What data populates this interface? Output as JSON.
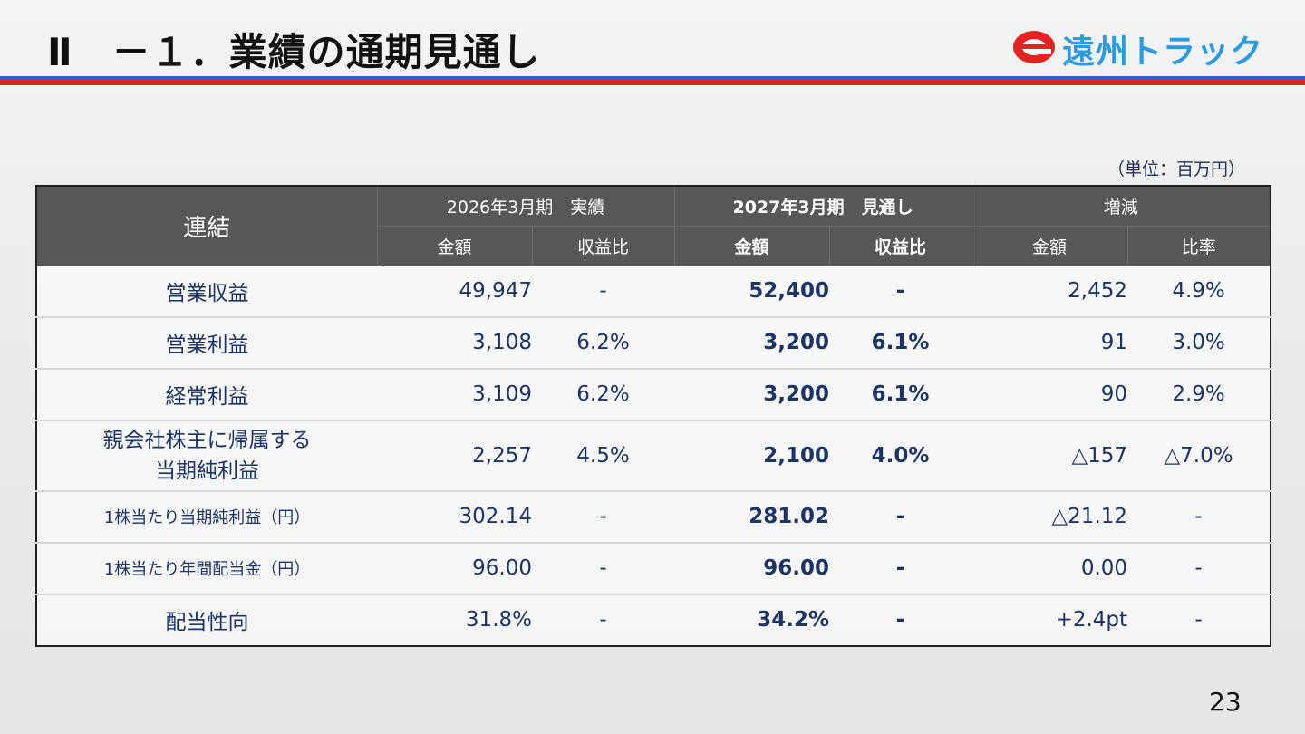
{
  "title": "Ⅱ　－１．業績の通期見通し",
  "logo": {
    "text": "遠州トラック",
    "accent_color": "#e32222",
    "text_color": "#2a9be0"
  },
  "unit": "（単位：百万円）",
  "table": {
    "corner": "連結",
    "groups": [
      "2026年3月期　実績",
      "2027年3月期　見通し",
      "増減"
    ],
    "subheaders": [
      "金額",
      "収益比",
      "金額",
      "収益比",
      "金額",
      "比率"
    ],
    "rows": [
      {
        "label": "営業収益",
        "cells": [
          "49,947",
          "-",
          "52,400",
          "-",
          "2,452",
          "4.9%"
        ]
      },
      {
        "label": "営業利益",
        "cells": [
          "3,108",
          "6.2%",
          "3,200",
          "6.1%",
          "91",
          "3.0%"
        ]
      },
      {
        "label": "経常利益",
        "cells": [
          "3,109",
          "6.2%",
          "3,200",
          "6.1%",
          "90",
          "2.9%"
        ]
      },
      {
        "label": "親会社株主に帰属する",
        "label2": "当期純利益",
        "cells": [
          "2,257",
          "4.5%",
          "2,100",
          "4.0%",
          "△157",
          "△7.0%"
        ]
      },
      {
        "label": "1株当たり当期純利益（円）",
        "cells": [
          "302.14",
          "-",
          "281.02",
          "-",
          "△21.12",
          "-"
        ]
      },
      {
        "label": "1株当たり年間配当金（円）",
        "cells": [
          "96.00",
          "-",
          "96.00",
          "-",
          "0.00",
          "-"
        ]
      },
      {
        "label": "配当性向",
        "cells": [
          "31.8%",
          "-",
          "34.2%",
          "-",
          "+2.4pt",
          "-"
        ]
      }
    ]
  },
  "page_number": "23",
  "colors": {
    "header_bg": "#575757",
    "highlight_bg": "#dde7f2",
    "text": "#1b3466",
    "rule_blue": "#2e63c8",
    "rule_red": "#e32222"
  }
}
